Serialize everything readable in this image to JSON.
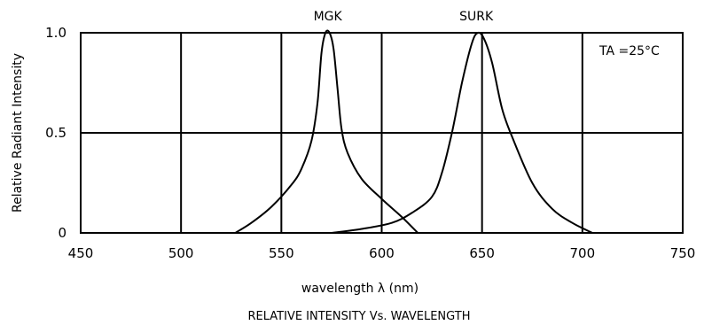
{
  "chart_data": {
    "type": "line",
    "title": "",
    "caption": "RELATIVE INTENSITY Vs. WAVELENGTH",
    "xlabel": "wavelength λ (nm)",
    "ylabel": "Relative Radiant Intensity",
    "xlim": [
      450,
      750
    ],
    "ylim": [
      0,
      1
    ],
    "x_ticks": [
      450,
      500,
      550,
      600,
      650,
      700,
      750
    ],
    "y_ticks": [
      {
        "value": 0,
        "label": "0"
      },
      {
        "value": 0.5,
        "label": "0.5"
      },
      {
        "value": 1.0,
        "label": "1.0"
      }
    ],
    "grid": true,
    "annotation": "TA =25°C",
    "series": [
      {
        "name": "MGK",
        "points": [
          [
            527,
            0
          ],
          [
            535,
            0.05
          ],
          [
            545,
            0.13
          ],
          [
            555,
            0.24
          ],
          [
            560,
            0.32
          ],
          [
            565,
            0.46
          ],
          [
            568,
            0.65
          ],
          [
            570,
            0.9
          ],
          [
            572,
            1.0
          ],
          [
            574,
            1.0
          ],
          [
            576,
            0.92
          ],
          [
            578,
            0.72
          ],
          [
            580,
            0.52
          ],
          [
            583,
            0.4
          ],
          [
            590,
            0.27
          ],
          [
            600,
            0.17
          ],
          [
            610,
            0.08
          ],
          [
            618,
            0
          ]
        ]
      },
      {
        "name": "SURK",
        "points": [
          [
            575,
            0
          ],
          [
            590,
            0.02
          ],
          [
            605,
            0.05
          ],
          [
            615,
            0.1
          ],
          [
            625,
            0.18
          ],
          [
            630,
            0.3
          ],
          [
            635,
            0.5
          ],
          [
            640,
            0.75
          ],
          [
            645,
            0.95
          ],
          [
            648,
            1.0
          ],
          [
            651,
            0.97
          ],
          [
            655,
            0.85
          ],
          [
            660,
            0.62
          ],
          [
            665,
            0.48
          ],
          [
            675,
            0.25
          ],
          [
            685,
            0.12
          ],
          [
            695,
            0.05
          ],
          [
            705,
            0
          ]
        ]
      }
    ]
  }
}
